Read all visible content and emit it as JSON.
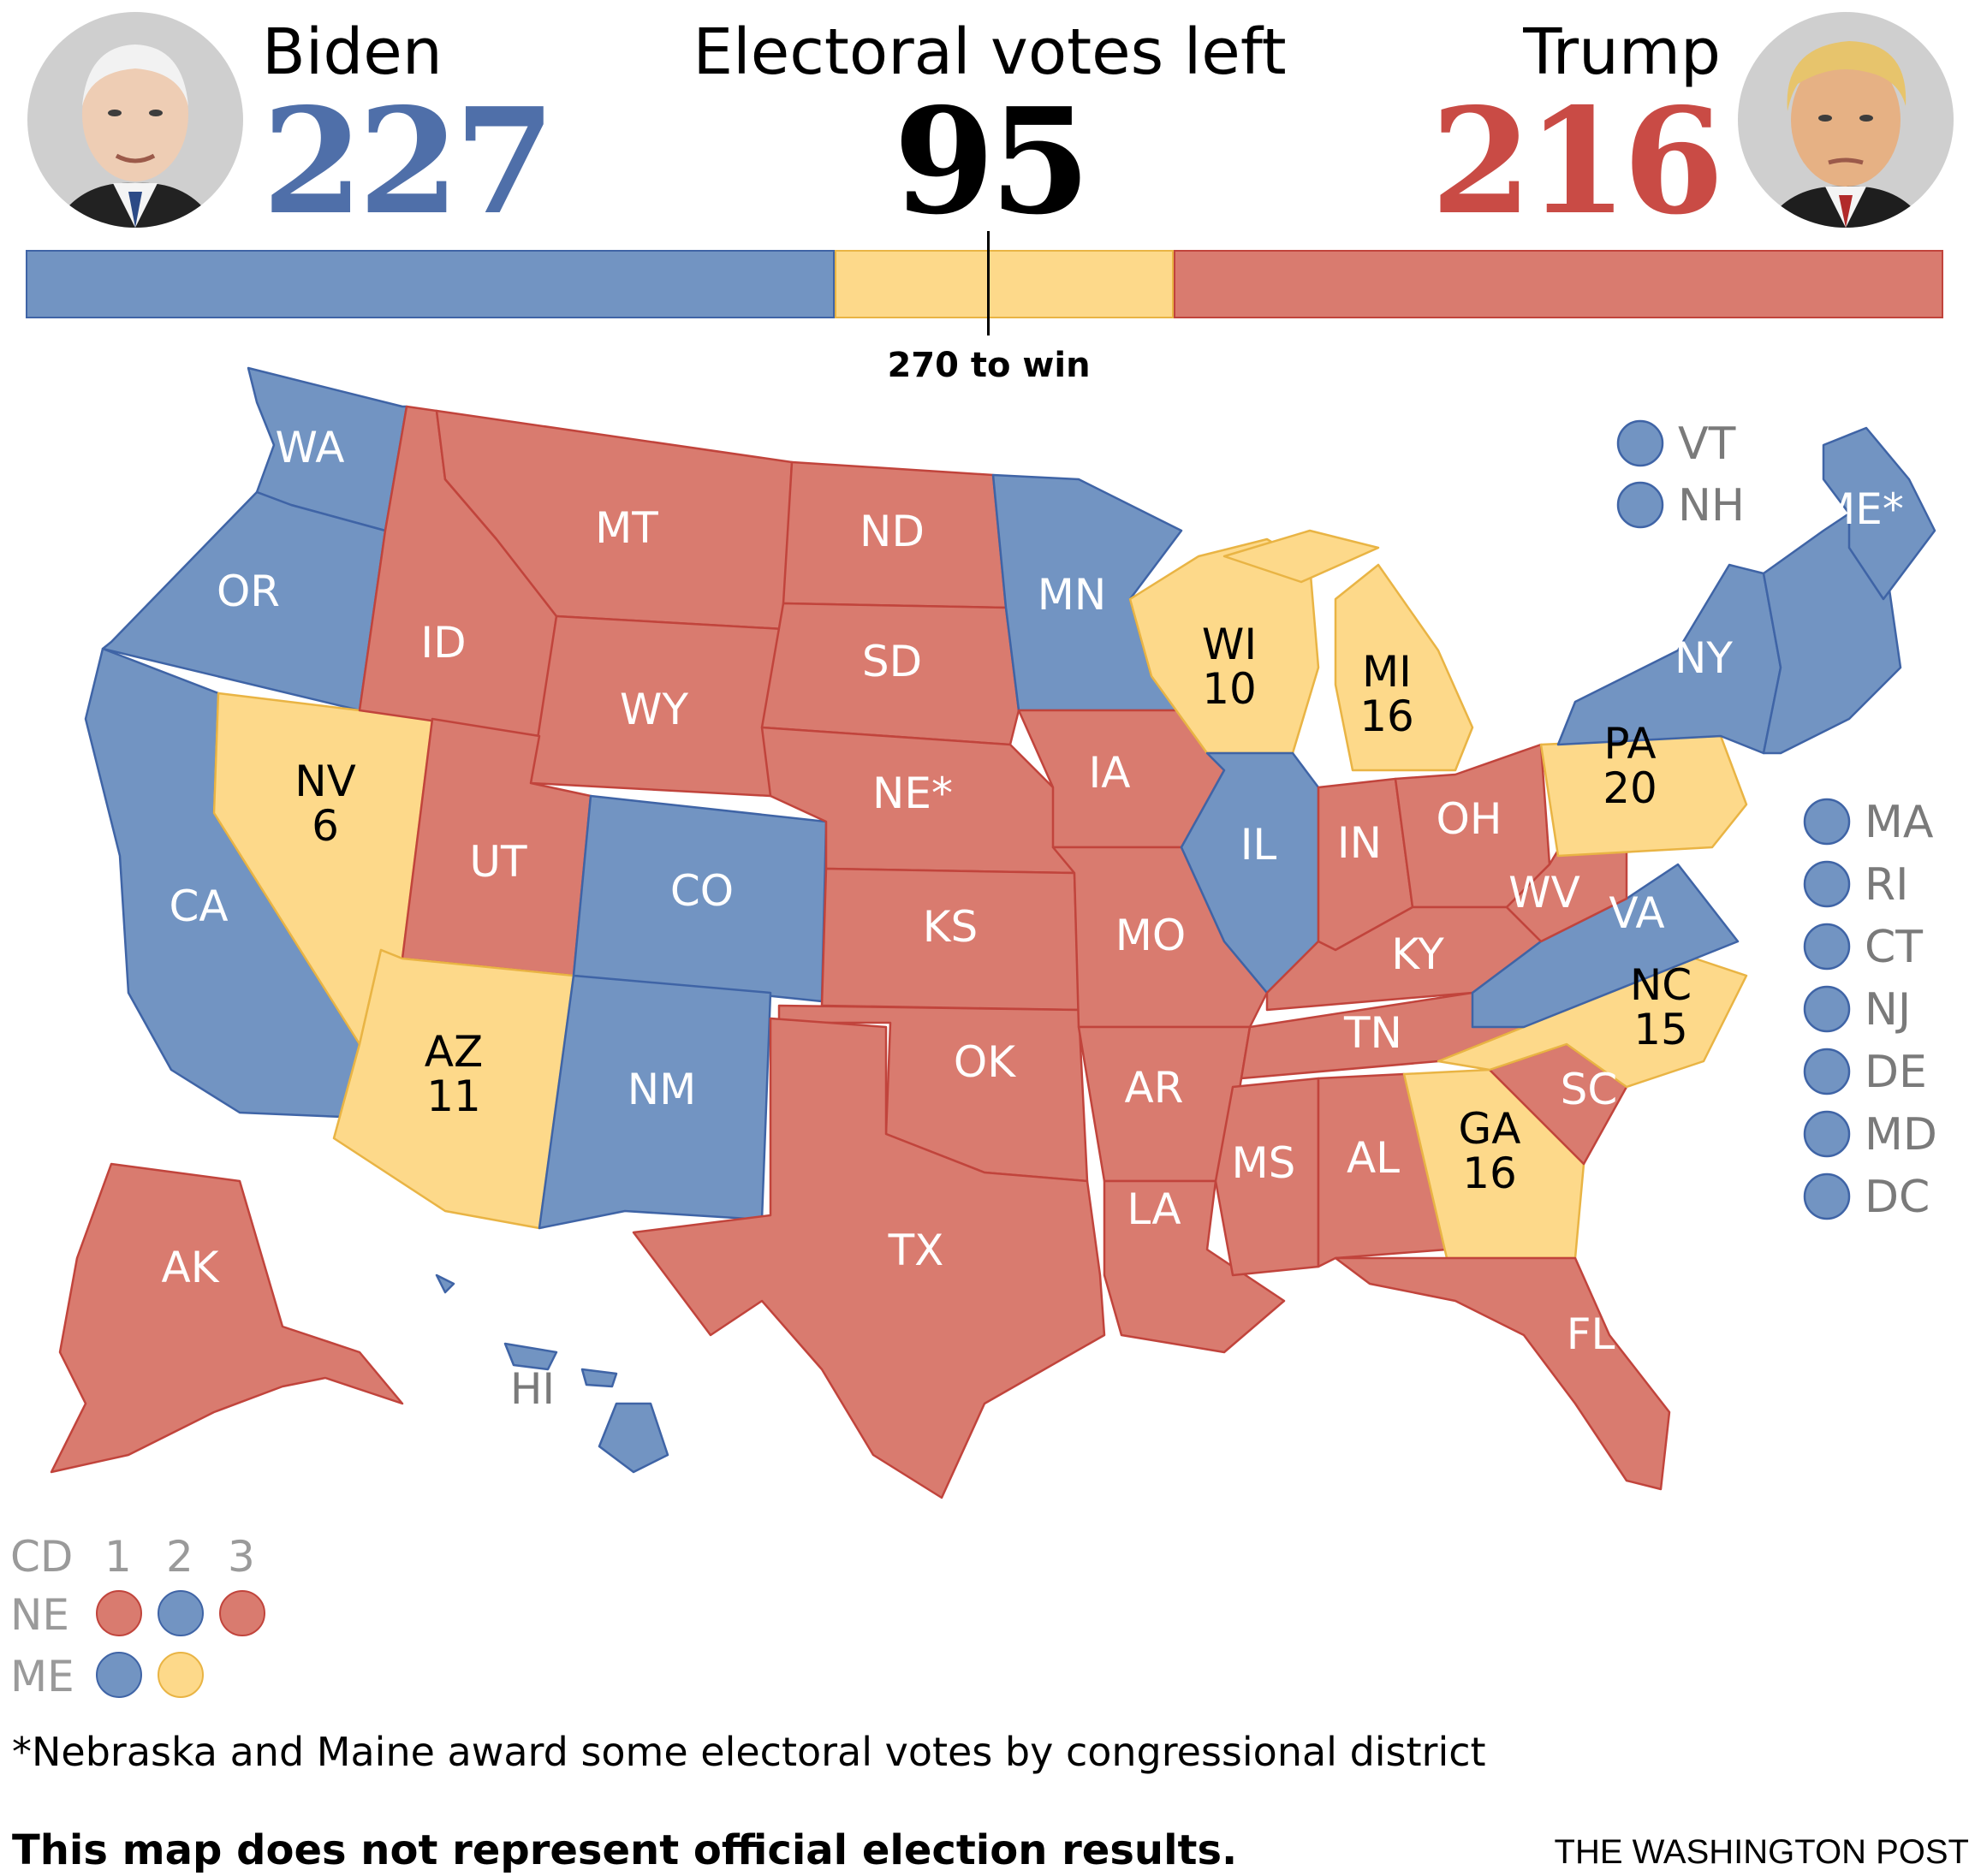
{
  "colors": {
    "dem": "#7294c2",
    "dem_border": "#3f64a6",
    "rep": "#d97b6f",
    "rep_border": "#c1443c",
    "tossup": "#fdd98a",
    "tossup_border": "#e9b444",
    "dem_text": "#4f6fa9",
    "rep_text": "#c94b45"
  },
  "header": {
    "biden": {
      "name": "Biden",
      "votes": "227"
    },
    "trump": {
      "name": "Trump",
      "votes": "216"
    },
    "center": {
      "label": "Electoral votes left",
      "votes": "95"
    },
    "bar": {
      "total": 538,
      "dem": 227,
      "tossup": 95,
      "rep": 216
    },
    "win_label": "270 to win"
  },
  "states": {
    "WA": {
      "label": "WA",
      "status": "dem"
    },
    "OR": {
      "label": "OR",
      "status": "dem"
    },
    "CA": {
      "label": "CA",
      "status": "dem"
    },
    "NV": {
      "label": "NV",
      "votes": "6",
      "status": "tossup"
    },
    "ID": {
      "label": "ID",
      "status": "rep"
    },
    "MT": {
      "label": "MT",
      "status": "rep"
    },
    "WY": {
      "label": "WY",
      "status": "rep"
    },
    "UT": {
      "label": "UT",
      "status": "rep"
    },
    "AZ": {
      "label": "AZ",
      "votes": "11",
      "status": "tossup"
    },
    "CO": {
      "label": "CO",
      "status": "dem"
    },
    "NM": {
      "label": "NM",
      "status": "dem"
    },
    "ND": {
      "label": "ND",
      "status": "rep"
    },
    "SD": {
      "label": "SD",
      "status": "rep"
    },
    "NE": {
      "label": "NE*",
      "status": "rep"
    },
    "KS": {
      "label": "KS",
      "status": "rep"
    },
    "OK": {
      "label": "OK",
      "status": "rep"
    },
    "TX": {
      "label": "TX",
      "status": "rep"
    },
    "MN": {
      "label": "MN",
      "status": "dem"
    },
    "IA": {
      "label": "IA",
      "status": "rep"
    },
    "MO": {
      "label": "MO",
      "status": "rep"
    },
    "AR": {
      "label": "AR",
      "status": "rep"
    },
    "LA": {
      "label": "LA",
      "status": "rep"
    },
    "WI": {
      "label": "WI",
      "votes": "10",
      "status": "tossup"
    },
    "IL": {
      "label": "IL",
      "status": "dem"
    },
    "MI": {
      "label": "MI",
      "votes": "16",
      "status": "tossup"
    },
    "IN": {
      "label": "IN",
      "status": "rep"
    },
    "OH": {
      "label": "OH",
      "status": "rep"
    },
    "KY": {
      "label": "KY",
      "status": "rep"
    },
    "TN": {
      "label": "TN",
      "status": "rep"
    },
    "MS": {
      "label": "MS",
      "status": "rep"
    },
    "AL": {
      "label": "AL",
      "status": "rep"
    },
    "GA": {
      "label": "GA",
      "votes": "16",
      "status": "tossup"
    },
    "FL": {
      "label": "FL",
      "status": "rep"
    },
    "SC": {
      "label": "SC",
      "status": "rep"
    },
    "NC": {
      "label": "NC",
      "votes": "15",
      "status": "tossup"
    },
    "VA": {
      "label": "VA",
      "status": "dem"
    },
    "WV": {
      "label": "WV",
      "status": "rep"
    },
    "PA": {
      "label": "PA",
      "votes": "20",
      "status": "tossup"
    },
    "NY": {
      "label": "NY",
      "status": "dem"
    },
    "NE_REGION": {
      "status": "dem"
    },
    "ME": {
      "label": "ME*",
      "status": "dem"
    },
    "AK": {
      "label": "AK",
      "status": "rep"
    },
    "HI": {
      "label": "HI",
      "status": "dem"
    }
  },
  "small_states": {
    "top": [
      {
        "label": "VT",
        "status": "dem"
      },
      {
        "label": "NH",
        "status": "dem"
      }
    ],
    "side": [
      {
        "label": "MA",
        "status": "dem"
      },
      {
        "label": "RI",
        "status": "dem"
      },
      {
        "label": "CT",
        "status": "dem"
      },
      {
        "label": "NJ",
        "status": "dem"
      },
      {
        "label": "DE",
        "status": "dem"
      },
      {
        "label": "MD",
        "status": "dem"
      },
      {
        "label": "DC",
        "status": "dem"
      }
    ]
  },
  "districts": {
    "header": "CD",
    "columns": [
      "1",
      "2",
      "3"
    ],
    "rows": [
      {
        "label": "NE",
        "values": [
          "rep",
          "dem",
          "rep"
        ]
      },
      {
        "label": "ME",
        "values": [
          "dem",
          "tossup"
        ]
      }
    ]
  },
  "footnote": "*Nebraska and Maine award some electoral votes by congressional district",
  "disclaimer": "This map does not represent official election results.",
  "credit": "THE WASHINGTON POST"
}
